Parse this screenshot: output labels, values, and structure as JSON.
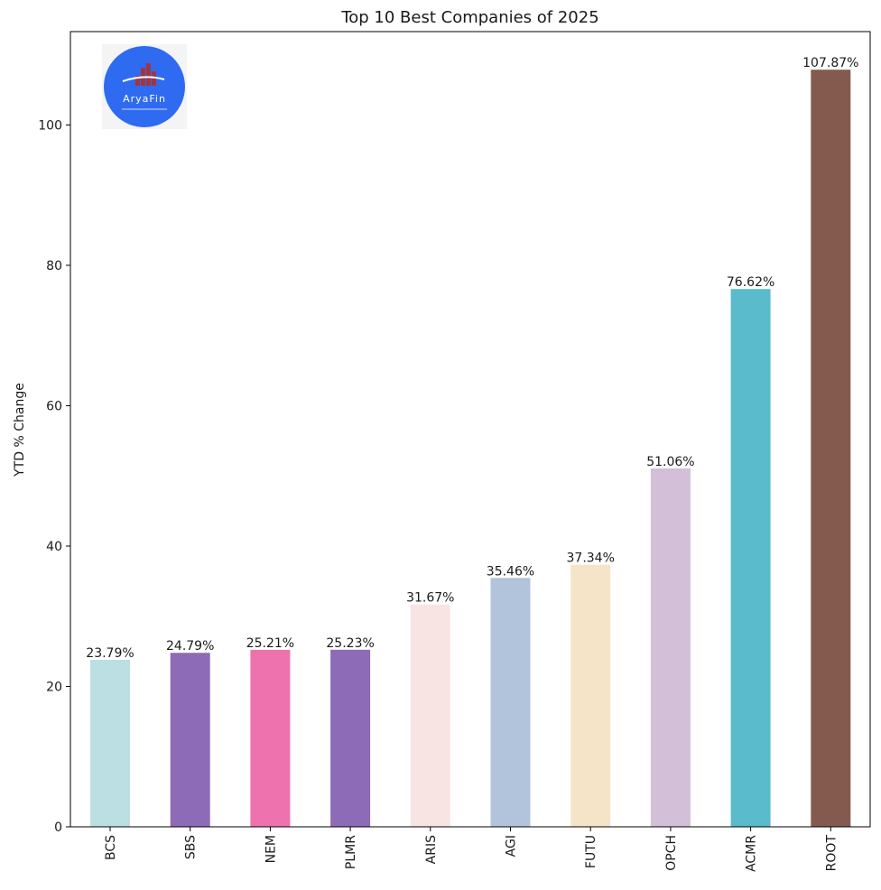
{
  "chart_data": {
    "type": "bar",
    "title": "Top 10 Best Companies of 2025",
    "xlabel": "",
    "ylabel": "YTD % Change",
    "categories": [
      "BCS",
      "SBS",
      "NEM",
      "PLMR",
      "ARIS",
      "AGI",
      "FUTU",
      "OPCH",
      "ACMR",
      "ROOT"
    ],
    "values": [
      23.79,
      24.79,
      25.21,
      25.23,
      31.67,
      35.46,
      37.34,
      51.06,
      76.62,
      107.87
    ],
    "value_labels": [
      "23.79%",
      "24.79%",
      "25.21%",
      "25.23%",
      "31.67%",
      "35.46%",
      "37.34%",
      "51.06%",
      "76.62%",
      "107.87%"
    ],
    "colors": [
      "#bcdfe4",
      "#8e6bb7",
      "#ed72ad",
      "#8e6bb7",
      "#f8e4e3",
      "#b2c4dc",
      "#f5e4c8",
      "#d3bfd7",
      "#59bbcb",
      "#845a4f"
    ],
    "ylim": [
      0,
      113.3
    ],
    "yticks": [
      0,
      20,
      40,
      60,
      80,
      100
    ],
    "grid": false,
    "legend": "none"
  },
  "logo": {
    "text": "AryaFin",
    "circle_color": "#2f6bf0",
    "bar_color": "#a1353f",
    "background_color": "#f4f4f4"
  }
}
